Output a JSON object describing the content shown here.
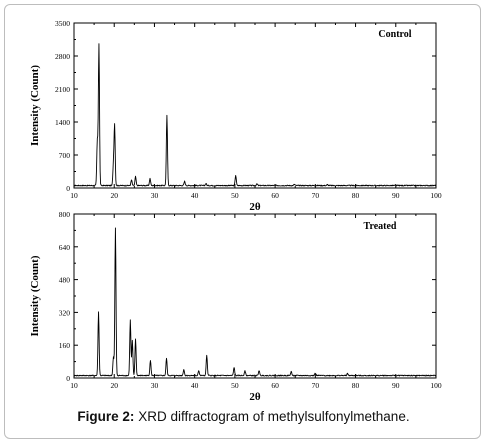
{
  "caption": {
    "label": "Figure 2:",
    "text": "XRD diffractogram of methylsulfonylmethane."
  },
  "chart_data": [
    {
      "type": "line",
      "title": "Control",
      "xlabel": "2θ",
      "ylabel": "Intensity (Count)",
      "xlim": [
        10,
        100
      ],
      "ylim": [
        0,
        3500
      ],
      "x_ticks": [
        "10",
        "20",
        "30",
        "40",
        "50",
        "60",
        "70",
        "80",
        "90",
        "100"
      ],
      "y_ticks": [
        "0",
        "700",
        "1400",
        "2100",
        "2800",
        "3500"
      ],
      "grid": false,
      "series": [
        {
          "peaks": [
            [
              15.8,
              950
            ],
            [
              16.2,
              3000
            ],
            [
              19.8,
              440
            ],
            [
              20.1,
              1270
            ],
            [
              24.3,
              120
            ],
            [
              25.3,
              190
            ],
            [
              28.9,
              150
            ],
            [
              33.1,
              1480
            ],
            [
              37.5,
              90
            ],
            [
              42.8,
              45
            ],
            [
              50.2,
              220
            ],
            [
              55.5,
              35
            ],
            [
              64.8,
              25
            ],
            [
              73.0,
              20
            ]
          ]
        }
      ]
    },
    {
      "type": "line",
      "title": "Treated",
      "xlabel": "2θ",
      "ylabel": "Intensity (Count)",
      "xlim": [
        10,
        100
      ],
      "ylim": [
        0,
        800
      ],
      "x_ticks": [
        "10",
        "20",
        "30",
        "40",
        "50",
        "60",
        "70",
        "80",
        "90",
        "100"
      ],
      "y_ticks": [
        "0",
        "160",
        "320",
        "480",
        "640",
        "800"
      ],
      "grid": false,
      "series": [
        {
          "peaks": [
            [
              16.1,
              310
            ],
            [
              19.8,
              90
            ],
            [
              20.3,
              720
            ],
            [
              24.0,
              270
            ],
            [
              24.5,
              170
            ],
            [
              25.3,
              180
            ],
            [
              29.0,
              75
            ],
            [
              33.0,
              85
            ],
            [
              37.3,
              30
            ],
            [
              41.0,
              25
            ],
            [
              43.0,
              100
            ],
            [
              49.8,
              40
            ],
            [
              52.5,
              25
            ],
            [
              56.0,
              25
            ],
            [
              64.0,
              20
            ],
            [
              70.0,
              12
            ],
            [
              78.0,
              10
            ]
          ]
        }
      ]
    }
  ]
}
